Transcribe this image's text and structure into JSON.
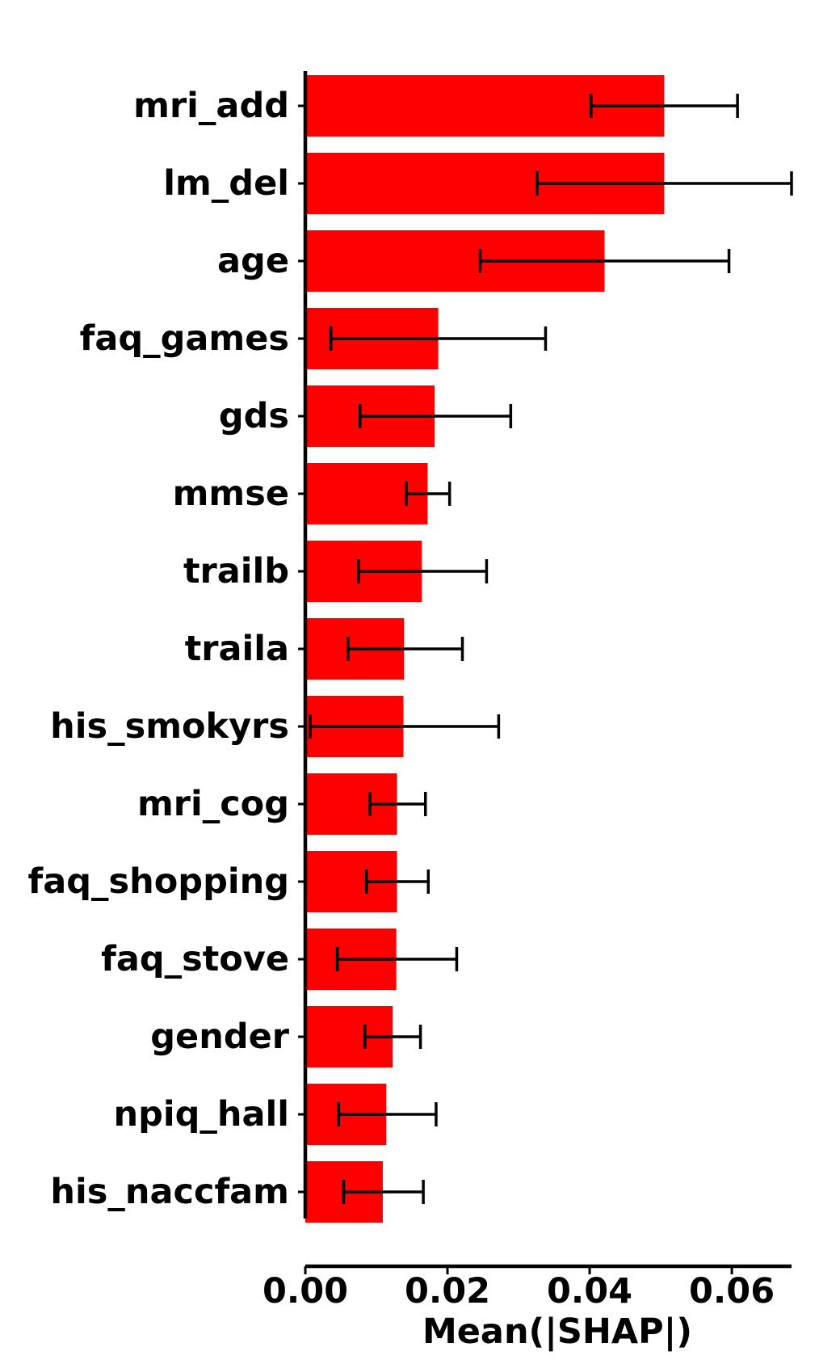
{
  "chart_data": {
    "type": "bar",
    "orientation": "horizontal",
    "categories": [
      "mri_add",
      "lm_del",
      "age",
      "faq_games",
      "gds",
      "mmse",
      "trailb",
      "traila",
      "his_smokyrs",
      "mri_cog",
      "faq_shopping",
      "faq_stove",
      "gender",
      "npiq_hall",
      "his_naccfam"
    ],
    "values": [
      0.0505,
      0.0505,
      0.0421,
      0.0187,
      0.0182,
      0.0172,
      0.0164,
      0.0139,
      0.0138,
      0.0129,
      0.0129,
      0.0128,
      0.0123,
      0.0114,
      0.0109
    ],
    "error_low": [
      0.0402,
      0.0326,
      0.0246,
      0.0036,
      0.0077,
      0.0142,
      0.0075,
      0.006,
      0.0007,
      0.0091,
      0.0086,
      0.0045,
      0.0084,
      0.0047,
      0.0054
    ],
    "error_high": [
      0.0608,
      0.0684,
      0.0596,
      0.0338,
      0.0289,
      0.0203,
      0.0255,
      0.0221,
      0.0272,
      0.0169,
      0.0173,
      0.0213,
      0.0162,
      0.0184,
      0.0166
    ],
    "xlabel": "Mean(|SHAP|)",
    "ylabel": "",
    "title": "",
    "xlim": [
      0.0,
      0.0684
    ],
    "xticks": [
      0.0,
      0.02,
      0.04,
      0.06
    ],
    "xtick_labels": [
      "0.00",
      "0.02",
      "0.04",
      "0.06"
    ],
    "bar_color": "#ff0000",
    "error_color": "#000000",
    "grid": false
  }
}
